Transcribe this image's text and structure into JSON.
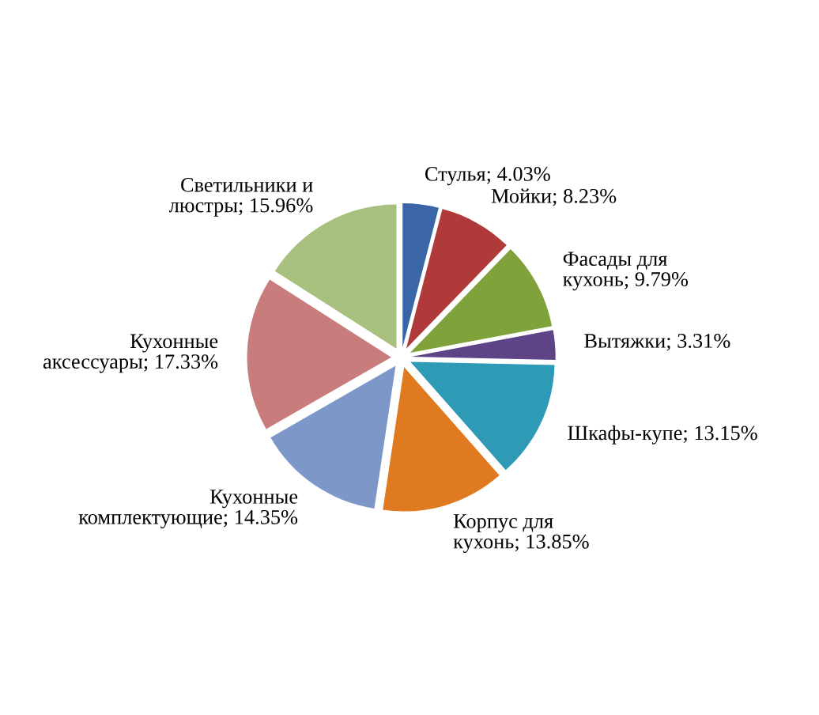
{
  "chart_data": {
    "type": "pie",
    "categories": [
      "Стулья",
      "Мойки",
      "Фасады для кухонь",
      "Вытяжки",
      "Шкафы-купе",
      "Корпус для кухонь",
      "Кухонные комплектующие",
      "Кухонные аксессуары",
      "Светильники и люстры"
    ],
    "value_labels": [
      "4.03%",
      "8.23%",
      "9.79%",
      "3.31%",
      "13.15%",
      "13.85%",
      "14.35%",
      "17.33%",
      "15.96%"
    ],
    "values": [
      4.03,
      8.23,
      9.79,
      3.31,
      13.15,
      13.85,
      14.35,
      17.33,
      15.96
    ],
    "colors": [
      "#3a66a8",
      "#b03a3a",
      "#7fa33a",
      "#5e4487",
      "#2e9ab5",
      "#e07a20",
      "#7d98c8",
      "#c87c7c",
      "#a8c07e"
    ],
    "legend": false
  }
}
